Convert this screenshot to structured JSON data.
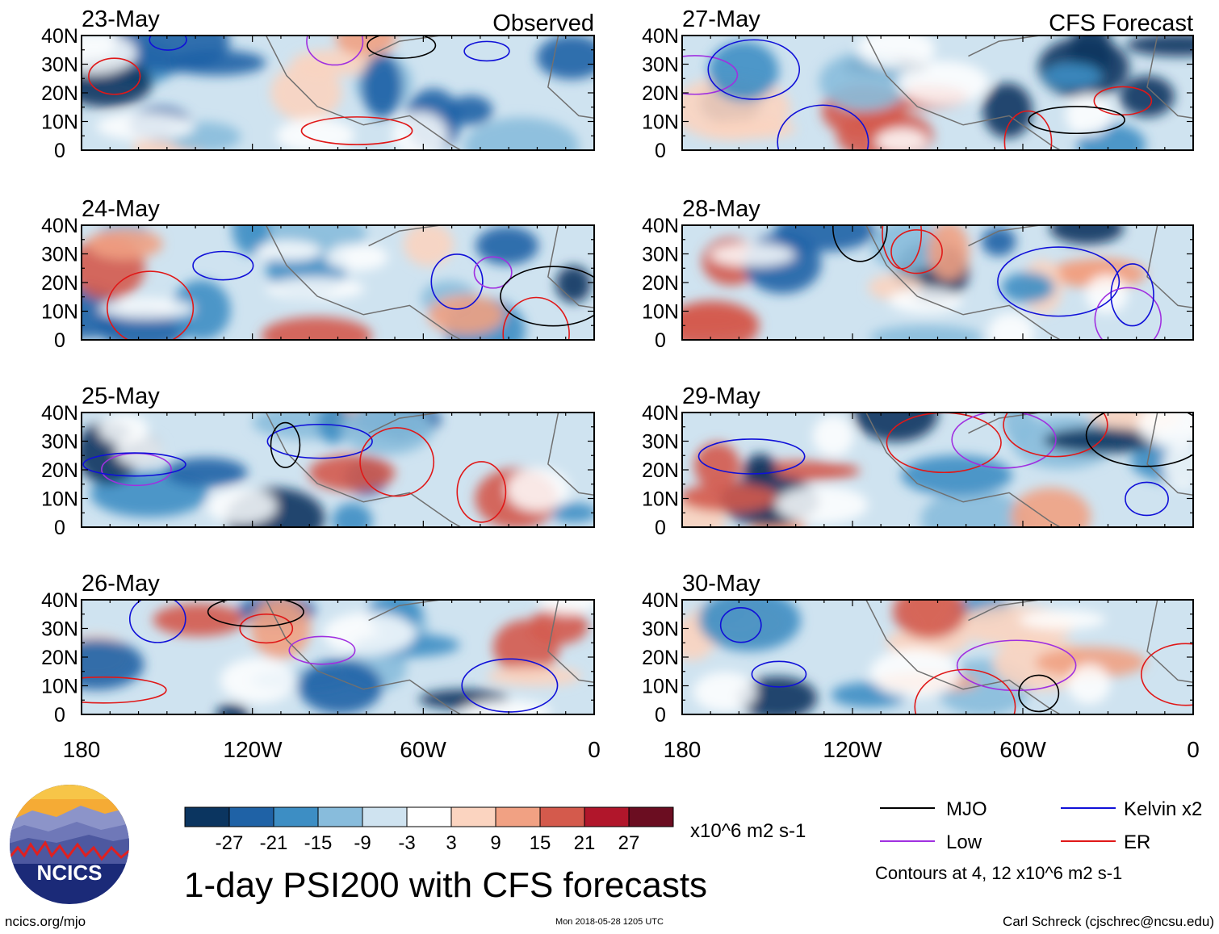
{
  "chart_data": {
    "type": "heatmap",
    "title": "1-day PSI200 with CFS forecasts",
    "units": "x10^6 m2 s-1",
    "column_headers": [
      "Observed",
      "CFS Forecast"
    ],
    "panels": [
      {
        "date": "23-May",
        "column": "observed"
      },
      {
        "date": "24-May",
        "column": "observed"
      },
      {
        "date": "25-May",
        "column": "observed"
      },
      {
        "date": "26-May",
        "column": "observed"
      },
      {
        "date": "27-May",
        "column": "forecast"
      },
      {
        "date": "28-May",
        "column": "forecast"
      },
      {
        "date": "29-May",
        "column": "forecast"
      },
      {
        "date": "30-May",
        "column": "forecast"
      }
    ],
    "y_ticks": [
      "40N",
      "30N",
      "20N",
      "10N",
      "0"
    ],
    "x_ticks": [
      "180",
      "120W",
      "60W",
      "0"
    ],
    "colorbar": {
      "tick_labels": [
        "-27",
        "-21",
        "-15",
        "-9",
        "-3",
        "3",
        "9",
        "15",
        "21",
        "27"
      ],
      "colors": [
        "#0b3560",
        "#1f62a6",
        "#3d8ec4",
        "#88bcdc",
        "#cfe3f0",
        "#ffffff",
        "#fbd4c0",
        "#f1a183",
        "#d45a4c",
        "#b1162b",
        "#6b0d21"
      ]
    },
    "legend": {
      "entries": [
        {
          "label": "MJO",
          "color": "#000000"
        },
        {
          "label": "Kelvin x2",
          "color": "#1010d8"
        },
        {
          "label": "Low",
          "color": "#a030e0"
        },
        {
          "label": "ER",
          "color": "#e01818"
        }
      ],
      "note": "Contours at 4, 12 x10^6 m2 s-1"
    }
  },
  "logo": {
    "text": "NCICS"
  },
  "footer": {
    "url": "ncics.org/mjo",
    "timestamp": "Mon 2018-05-28 1205 UTC",
    "author": "Carl Schreck (cjschrec@ncsu.edu)"
  }
}
